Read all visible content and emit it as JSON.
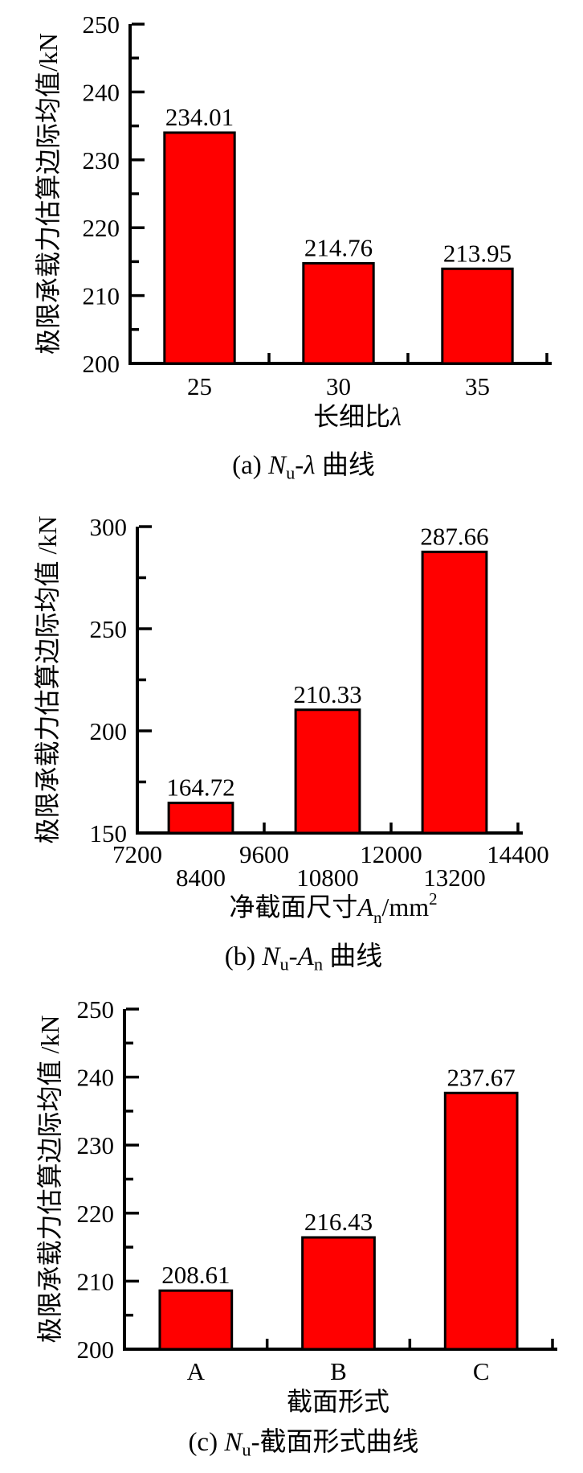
{
  "colors": {
    "background": "#ffffff",
    "bar_fill": "#ff0000",
    "bar_stroke": "#000000",
    "axis": "#000000",
    "text": "#000000"
  },
  "captions": [
    {
      "plain": "(a) Nu-λ 曲线",
      "segments": [
        {
          "t": "(a) "
        },
        {
          "t": "N",
          "s": "i"
        },
        {
          "t": "u",
          "s": "sub"
        },
        {
          "t": "-"
        },
        {
          "t": "λ",
          "s": "i"
        },
        {
          "t": " 曲线"
        }
      ]
    },
    {
      "plain": "(b) Nu-An 曲线",
      "segments": [
        {
          "t": "(b) "
        },
        {
          "t": "N",
          "s": "i"
        },
        {
          "t": "u",
          "s": "sub"
        },
        {
          "t": "-"
        },
        {
          "t": "A",
          "s": "i"
        },
        {
          "t": "n",
          "s": "sub"
        },
        {
          "t": " 曲线"
        }
      ]
    },
    {
      "plain": "(c) Nu-截面形式曲线",
      "segments": [
        {
          "t": "(c) "
        },
        {
          "t": "N",
          "s": "i"
        },
        {
          "t": "u",
          "s": "sub"
        },
        {
          "t": "-截面形式曲线"
        }
      ]
    }
  ],
  "chart_data": [
    {
      "type": "bar",
      "panel": "a",
      "title": "",
      "categories": [
        "25",
        "30",
        "35"
      ],
      "values": [
        234.01,
        214.76,
        213.95
      ],
      "bar_labels": [
        "234.01",
        "214.76",
        "213.95"
      ],
      "xlabel": "长细比λ",
      "xlabel_segments": [
        {
          "t": "长细比"
        },
        {
          "t": "λ",
          "s": "i"
        }
      ],
      "ylabel": "极限承载力估算边际均值/kN",
      "ylim": [
        200,
        250
      ],
      "yticks": [
        200,
        210,
        220,
        230,
        240,
        250
      ],
      "ytick_interval": 10,
      "yminor_interval": 5,
      "xtick_label_rows": 1,
      "grid": false,
      "legend": null,
      "bar_color": "#ff0000"
    },
    {
      "type": "bar",
      "panel": "b",
      "title": "",
      "categories": [
        "8400",
        "10800",
        "13200"
      ],
      "values": [
        164.72,
        210.33,
        287.66
      ],
      "bar_labels": [
        "164.72",
        "210.33",
        "287.66"
      ],
      "axis_tick_labels": [
        "7200",
        "8400",
        "9600",
        "10800",
        "12000",
        "13200",
        "14400"
      ],
      "xlim": [
        7200,
        14400
      ],
      "xtick_interval": 1200,
      "xlabel": "净截面尺寸An/mm2",
      "xlabel_segments": [
        {
          "t": "净截面尺寸"
        },
        {
          "t": "A",
          "s": "i"
        },
        {
          "t": "n",
          "s": "sub"
        },
        {
          "t": "/mm"
        },
        {
          "t": "2",
          "s": "sup"
        }
      ],
      "ylabel": "极限承载力估算边际均值 /kN",
      "ylim": [
        150,
        300
      ],
      "yticks": [
        150,
        200,
        250,
        300
      ],
      "ytick_interval": 50,
      "yminor_interval": 25,
      "xtick_label_rows": 2,
      "grid": false,
      "legend": null,
      "bar_color": "#ff0000"
    },
    {
      "type": "bar",
      "panel": "c",
      "title": "",
      "categories": [
        "A",
        "B",
        "C"
      ],
      "values": [
        208.61,
        216.43,
        237.67
      ],
      "bar_labels": [
        "208.61",
        "216.43",
        "237.67"
      ],
      "xlabel": "截面形式",
      "xlabel_segments": [
        {
          "t": "截面形式"
        }
      ],
      "ylabel": "极限承载力估算边际均值 /kN",
      "ylim": [
        200,
        250
      ],
      "yticks": [
        200,
        210,
        220,
        230,
        240,
        250
      ],
      "ytick_interval": 10,
      "yminor_interval": 5,
      "xtick_label_rows": 1,
      "grid": false,
      "legend": null,
      "bar_color": "#ff0000"
    }
  ]
}
